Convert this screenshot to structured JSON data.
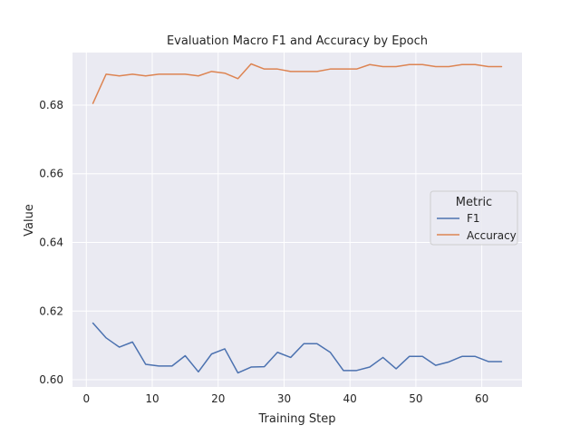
{
  "chart_data": {
    "type": "line",
    "title": "Evaluation Macro F1 and Accuracy by Epoch",
    "xlabel": "Training Step",
    "ylabel": "Value",
    "xlim": [
      -2.1,
      66.1
    ],
    "ylim": [
      0.5979,
      0.6953
    ],
    "xticks": [
      0,
      10,
      20,
      30,
      40,
      50,
      60
    ],
    "yticks": [
      0.6,
      0.62,
      0.64,
      0.66,
      0.68
    ],
    "ytick_labels": [
      "0.60",
      "0.62",
      "0.64",
      "0.66",
      "0.68"
    ],
    "grid": true,
    "legend": {
      "title": "Metric",
      "position": "center-right"
    },
    "x": [
      1,
      3,
      5,
      7,
      9,
      11,
      13,
      15,
      17,
      19,
      21,
      23,
      25,
      27,
      29,
      31,
      33,
      35,
      37,
      39,
      41,
      43,
      45,
      47,
      49,
      51,
      53,
      55,
      57,
      59,
      61,
      63
    ],
    "series": [
      {
        "name": "F1",
        "color": "#4c72b0",
        "values": [
          0.6165,
          0.6122,
          0.6095,
          0.611,
          0.6045,
          0.604,
          0.604,
          0.607,
          0.6023,
          0.6075,
          0.609,
          0.602,
          0.6037,
          0.6038,
          0.608,
          0.6065,
          0.6105,
          0.6105,
          0.608,
          0.6027,
          0.6027,
          0.6037,
          0.6065,
          0.6032,
          0.6068,
          0.6068,
          0.6042,
          0.6052,
          0.6068,
          0.6068,
          0.6053,
          0.6053
        ]
      },
      {
        "name": "Accuracy",
        "color": "#dd8452",
        "values": [
          0.6805,
          0.689,
          0.6885,
          0.689,
          0.6885,
          0.689,
          0.689,
          0.689,
          0.6885,
          0.6898,
          0.6893,
          0.6877,
          0.692,
          0.6905,
          0.6905,
          0.6898,
          0.6898,
          0.6898,
          0.6905,
          0.6905,
          0.6905,
          0.6918,
          0.6912,
          0.6912,
          0.6918,
          0.6918,
          0.6912,
          0.6912,
          0.6918,
          0.6918,
          0.6912,
          0.6912
        ]
      }
    ]
  }
}
